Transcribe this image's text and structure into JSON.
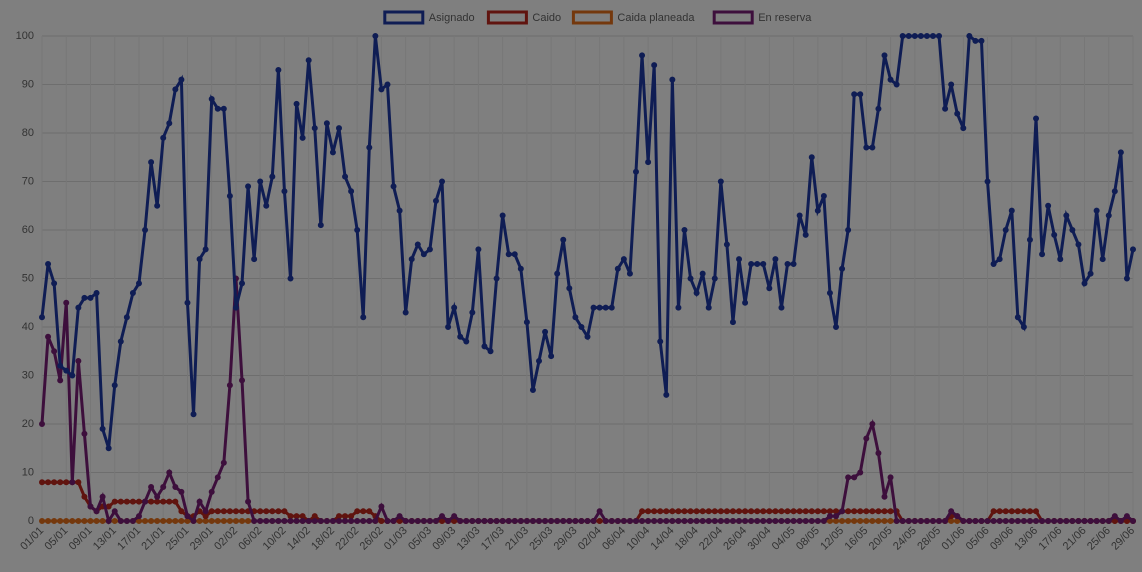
{
  "chart_data": {
    "type": "line",
    "categories": [
      "01/01",
      null,
      null,
      null,
      "05/01",
      null,
      null,
      null,
      "09/01",
      null,
      null,
      null,
      "13/01",
      null,
      null,
      null,
      "17/01",
      null,
      null,
      null,
      "21/01",
      null,
      null,
      null,
      "25/01",
      null,
      null,
      null,
      "29/01",
      null,
      null,
      null,
      "02/02",
      null,
      null,
      null,
      "06/02",
      null,
      null,
      null,
      "10/02",
      null,
      null,
      null,
      "14/02",
      null,
      null,
      null,
      "18/02",
      null,
      null,
      null,
      "22/02",
      null,
      null,
      null,
      "26/02",
      null,
      null,
      null,
      "01/03",
      null,
      null,
      null,
      "05/03",
      null,
      null,
      null,
      "09/03",
      null,
      null,
      null,
      "13/03",
      null,
      null,
      null,
      "17/03",
      null,
      null,
      null,
      "21/03",
      null,
      null,
      null,
      "25/03",
      null,
      null,
      null,
      "29/03",
      null,
      null,
      null,
      "02/04",
      null,
      null,
      null,
      "06/04",
      null,
      null,
      null,
      "10/04",
      null,
      null,
      null,
      "14/04",
      null,
      null,
      null,
      "18/04",
      null,
      null,
      null,
      "22/04",
      null,
      null,
      null,
      "26/04",
      null,
      null,
      null,
      "30/04",
      null,
      null,
      null,
      "04/05",
      null,
      null,
      null,
      "08/05",
      null,
      null,
      null,
      "12/05",
      null,
      null,
      null,
      "16/05",
      null,
      null,
      null,
      "20/05",
      null,
      null,
      null,
      "24/05",
      null,
      null,
      null,
      "28/05",
      null,
      null,
      null,
      "01/06",
      null,
      null,
      null,
      "05/06",
      null,
      null,
      null,
      "09/06",
      null,
      null,
      null,
      "13/06",
      null,
      null,
      null,
      "17/06",
      null,
      null,
      null,
      "21/06",
      null,
      null,
      null,
      "25/06",
      null,
      null,
      null,
      "29/06"
    ],
    "series": [
      {
        "name": "Asignado",
        "color": "#1f3aa8",
        "values": [
          42,
          53,
          49,
          32,
          31,
          30,
          44,
          46,
          46,
          47,
          19,
          15,
          28,
          37,
          42,
          47,
          49,
          60,
          74,
          65,
          79,
          82,
          89,
          91,
          45,
          22,
          54,
          56,
          87,
          85,
          85,
          67,
          44,
          49,
          69,
          54,
          70,
          65,
          71,
          93,
          68,
          50,
          86,
          79,
          95,
          81,
          61,
          82,
          76,
          81,
          71,
          68,
          60,
          42,
          77,
          100,
          89,
          90,
          69,
          64,
          43,
          54,
          57,
          55,
          56,
          66,
          70,
          40,
          44,
          38,
          37,
          43,
          56,
          36,
          35,
          50,
          63,
          55,
          55,
          52,
          41,
          27,
          33,
          39,
          34,
          51,
          58,
          48,
          42,
          40,
          38,
          44,
          44,
          44,
          44,
          52,
          54,
          51,
          72,
          96,
          74,
          94,
          37,
          26,
          91,
          44,
          60,
          50,
          47,
          51,
          44,
          50,
          70,
          57,
          41,
          54,
          45,
          53,
          53,
          53,
          48,
          54,
          44,
          53,
          53,
          63,
          59,
          75,
          64,
          67,
          47,
          40,
          52,
          60,
          88,
          88,
          77,
          77,
          85,
          96,
          91,
          90,
          100,
          100,
          100,
          100,
          100,
          100,
          100,
          85,
          90,
          84,
          81,
          100,
          99,
          99,
          70,
          53,
          54,
          60,
          64,
          42,
          40,
          58,
          83,
          55,
          65,
          59,
          54,
          63,
          60,
          57,
          49,
          51,
          64,
          54,
          63,
          68,
          76,
          50,
          56
        ]
      },
      {
        "name": "Caido",
        "color": "#c0281e",
        "values": [
          8,
          8,
          8,
          8,
          8,
          8,
          8,
          5,
          3,
          2,
          3,
          3,
          4,
          4,
          4,
          4,
          4,
          4,
          4,
          4,
          4,
          4,
          4,
          2,
          1,
          1,
          2,
          1,
          2,
          2,
          2,
          2,
          2,
          2,
          2,
          2,
          2,
          2,
          2,
          2,
          2,
          1,
          1,
          1,
          0,
          1,
          0,
          0,
          0,
          1,
          1,
          1,
          2,
          2,
          2,
          1,
          0,
          0,
          0,
          0,
          0,
          0,
          0,
          0,
          0,
          0,
          0,
          0,
          0,
          0,
          0,
          0,
          0,
          0,
          0,
          0,
          0,
          0,
          0,
          0,
          0,
          0,
          0,
          0,
          0,
          0,
          0,
          0,
          0,
          0,
          0,
          0,
          0,
          0,
          0,
          0,
          0,
          0,
          0,
          2,
          2,
          2,
          2,
          2,
          2,
          2,
          2,
          2,
          2,
          2,
          2,
          2,
          2,
          2,
          2,
          2,
          2,
          2,
          2,
          2,
          2,
          2,
          2,
          2,
          2,
          2,
          2,
          2,
          2,
          2,
          2,
          2,
          2,
          2,
          2,
          2,
          2,
          2,
          2,
          2,
          2,
          2,
          0,
          0,
          0,
          0,
          0,
          0,
          0,
          0,
          1,
          1,
          0,
          0,
          0,
          0,
          0,
          2,
          2,
          2,
          2,
          2,
          2,
          2,
          2,
          0,
          0,
          0,
          0,
          0,
          0,
          0,
          0,
          0,
          0,
          0,
          0,
          0,
          0,
          0,
          0
        ]
      },
      {
        "name": "Caida planeada",
        "color": "#e8701a",
        "values": [
          0,
          0,
          0,
          0,
          0,
          0,
          0,
          0,
          0,
          0,
          0,
          0,
          0,
          0,
          0,
          0,
          0,
          0,
          0,
          0,
          0,
          0,
          0,
          0,
          0,
          0,
          0,
          0,
          0,
          0,
          0,
          0,
          0,
          0,
          0,
          0,
          0,
          0,
          0,
          0,
          0,
          0,
          0,
          0,
          0,
          0,
          0,
          0,
          0,
          0,
          0,
          0,
          0,
          0,
          0,
          0,
          0,
          0,
          0,
          0,
          0,
          0,
          0,
          0,
          0,
          0,
          0,
          0,
          0,
          0,
          0,
          0,
          0,
          0,
          0,
          0,
          0,
          0,
          0,
          0,
          0,
          0,
          0,
          0,
          0,
          0,
          0,
          0,
          0,
          0,
          0,
          0,
          0,
          0,
          0,
          0,
          0,
          0,
          0,
          0,
          0,
          0,
          0,
          0,
          0,
          0,
          0,
          0,
          0,
          0,
          0,
          0,
          0,
          0,
          0,
          0,
          0,
          0,
          0,
          0,
          0,
          0,
          0,
          0,
          0,
          0,
          0,
          0,
          0,
          0,
          0,
          0,
          0,
          0,
          0,
          0,
          0,
          0,
          0,
          0,
          0,
          0,
          0,
          0,
          0,
          0,
          0,
          0,
          0,
          0,
          0,
          0,
          0,
          0,
          0,
          0,
          0,
          0,
          0,
          0,
          0,
          0,
          0,
          0,
          0,
          0,
          0,
          0,
          0,
          0,
          0,
          0,
          0,
          0,
          0,
          0,
          0,
          0,
          0,
          0,
          0
        ]
      },
      {
        "name": "En reserva",
        "color": "#7a1f78",
        "values": [
          20,
          38,
          35,
          29,
          45,
          8,
          33,
          18,
          3,
          2,
          5,
          0,
          2,
          0,
          0,
          0,
          1,
          4,
          7,
          5,
          7,
          10,
          7,
          6,
          1,
          0,
          4,
          2,
          6,
          9,
          12,
          28,
          50,
          29,
          4,
          0,
          0,
          0,
          0,
          0,
          0,
          0,
          0,
          0,
          0,
          0,
          0,
          0,
          0,
          0,
          0,
          0,
          0,
          0,
          0,
          0,
          3,
          0,
          0,
          1,
          0,
          0,
          0,
          0,
          0,
          0,
          1,
          0,
          1,
          0,
          0,
          0,
          0,
          0,
          0,
          0,
          0,
          0,
          0,
          0,
          0,
          0,
          0,
          0,
          0,
          0,
          0,
          0,
          0,
          0,
          0,
          0,
          2,
          0,
          0,
          0,
          0,
          0,
          0,
          0,
          0,
          0,
          0,
          0,
          0,
          0,
          0,
          0,
          0,
          0,
          0,
          0,
          0,
          0,
          0,
          0,
          0,
          0,
          0,
          0,
          0,
          0,
          0,
          0,
          0,
          0,
          0,
          0,
          0,
          0,
          1,
          1,
          2,
          9,
          9,
          10,
          17,
          20,
          14,
          5,
          9,
          0,
          0,
          0,
          0,
          0,
          0,
          0,
          0,
          0,
          2,
          1,
          0,
          0,
          0,
          0,
          0,
          0,
          0,
          0,
          0,
          0,
          0,
          0,
          0,
          0,
          0,
          0,
          0,
          0,
          0,
          0,
          0,
          0,
          0,
          0,
          0,
          1,
          0,
          1,
          0
        ]
      }
    ],
    "ylim": [
      0,
      100
    ],
    "yticks": [
      0,
      10,
      20,
      30,
      40,
      50,
      60,
      70,
      80,
      90,
      100
    ],
    "grid": true,
    "legend": "top"
  }
}
